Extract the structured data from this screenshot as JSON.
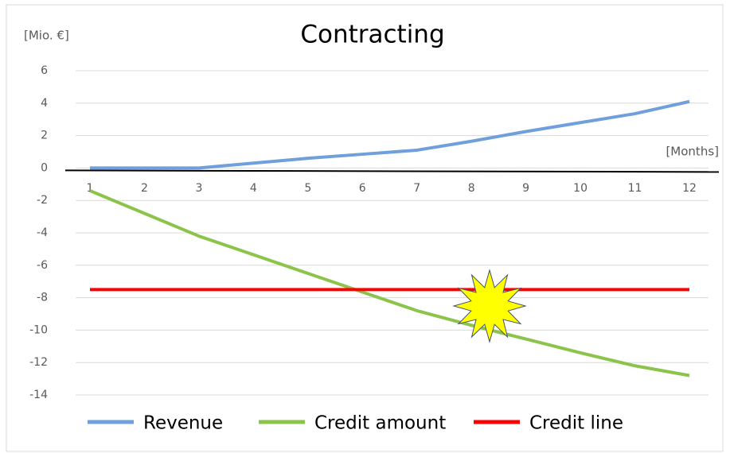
{
  "chart_data": {
    "type": "line",
    "title": "Contracting",
    "y_axis_label": "[Mio. €]",
    "x_axis_label": "[Months]",
    "categories": [
      "1",
      "2",
      "3",
      "4",
      "5",
      "6",
      "7",
      "8",
      "9",
      "10",
      "11",
      "12"
    ],
    "series": [
      {
        "name": "Revenue",
        "color": "#6fa0dc",
        "values": [
          0,
          0,
          0,
          0.3,
          0.6,
          0.85,
          1.1,
          1.65,
          2.25,
          2.8,
          3.35,
          4.1
        ]
      },
      {
        "name": "Credit amount",
        "color": "#8cc34a",
        "values": [
          -1.4,
          -2.8,
          -4.2,
          -5.35,
          -6.5,
          -7.65,
          -8.8,
          -9.7,
          -10.55,
          -11.4,
          -12.2,
          -12.8
        ]
      },
      {
        "name": "Credit line",
        "color": "#ff0000",
        "values": [
          -7.5,
          -7.5,
          -7.5,
          -7.5,
          -7.5,
          -7.5,
          -7.5,
          -7.5,
          -7.5,
          -7.5,
          -7.5,
          -7.5
        ]
      }
    ],
    "ylim": [
      -14,
      6
    ],
    "yticks": [
      -14,
      -12,
      -10,
      -8,
      -6,
      -4,
      -2,
      0,
      2,
      4,
      6
    ],
    "grid": true
  }
}
